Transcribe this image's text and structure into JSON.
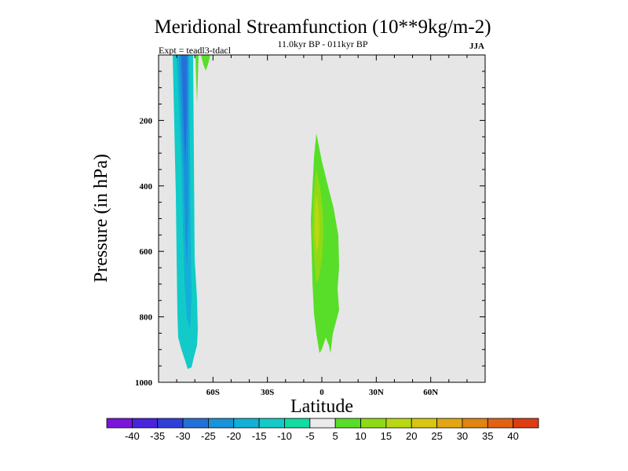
{
  "chart_data": {
    "type": "contour",
    "title": "Meridional Streamfunction (10**9kg/m-2)",
    "subtitle": "11.0kyr BP - 011kyr BP",
    "season": "JJA",
    "experiment": "Expt = teadl3-tdacl",
    "xlabel": "Latitude",
    "ylabel": "Pressure (in hPa)",
    "xlim": [
      -90,
      90
    ],
    "ylim": [
      1000,
      0
    ],
    "x_ticks": [
      {
        "value": -60,
        "label": "60S"
      },
      {
        "value": -30,
        "label": "30S"
      },
      {
        "value": 0,
        "label": "0"
      },
      {
        "value": 30,
        "label": "30N"
      },
      {
        "value": 60,
        "label": "60N"
      }
    ],
    "y_ticks": [
      {
        "value": 200,
        "label": "200"
      },
      {
        "value": 400,
        "label": "400"
      },
      {
        "value": 600,
        "label": "600"
      },
      {
        "value": 800,
        "label": "800"
      },
      {
        "value": 1000,
        "label": "1000"
      }
    ],
    "colorbar": {
      "labels": [
        "-40",
        "-35",
        "-30",
        "-25",
        "-20",
        "-15",
        "-10",
        "-5",
        "5",
        "10",
        "15",
        "20",
        "25",
        "30",
        "35",
        "40"
      ],
      "colors": [
        "#7a16d8",
        "#4a23dc",
        "#2f3fd9",
        "#2470d8",
        "#1993d9",
        "#12b0d6",
        "#12cbc8",
        "#12dca2",
        "#ebebeb",
        "#58de28",
        "#8fda15",
        "#b9d812",
        "#d7c612",
        "#e1a712",
        "#e08412",
        "#df6312",
        "#de3c12"
      ]
    },
    "features": [
      {
        "name": "southern-negative-cell",
        "level_min": -25,
        "level_max": -10,
        "lat_range": [
          -75,
          -65
        ],
        "pressure_range": [
          0,
          960
        ]
      },
      {
        "name": "southern-positive-wisp",
        "level": 5,
        "lat_range": [
          -72,
          -68
        ],
        "pressure_range": [
          0,
          120
        ]
      },
      {
        "name": "equatorial-positive-cell",
        "level_min": 5,
        "level_max": 15,
        "lat_range": [
          -8,
          9
        ],
        "pressure_range": [
          260,
          910
        ]
      }
    ]
  }
}
